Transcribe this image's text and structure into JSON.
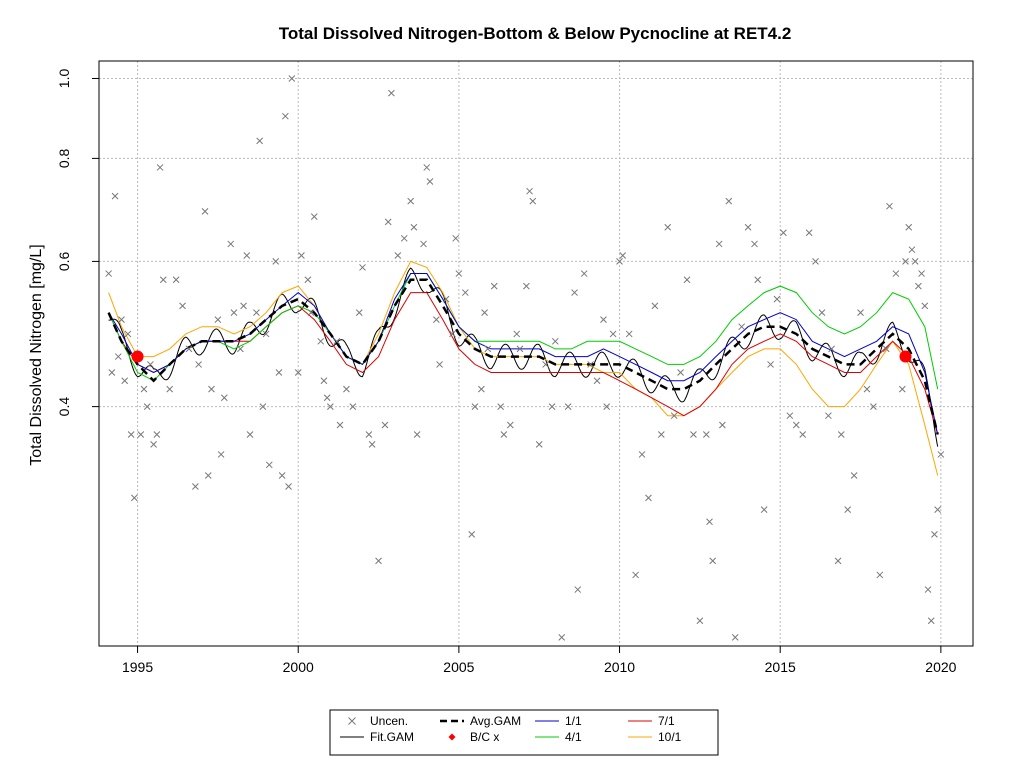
{
  "chart_data": {
    "type": "scatter",
    "title": "Total Dissolved Nitrogen-Bottom & Below Pycnocline at RET4.2",
    "xlabel": "",
    "ylabel": "Total Dissolved Nitrogen [mg/L]",
    "xlim": [
      1993.8,
      2021.0
    ],
    "ylim": [
      0.205,
      1.05
    ],
    "y_scale": "log",
    "grid": true,
    "legend_position": "bottom",
    "x_ticks": [
      1995,
      2000,
      2005,
      2010,
      2015,
      2020
    ],
    "x_tick_labels": [
      "1995",
      "2000",
      "2005",
      "2010",
      "2015",
      "2020"
    ],
    "y_ticks": [
      0.4,
      0.6,
      0.8,
      1.0
    ],
    "y_tick_labels": [
      "0.4",
      "0.6",
      "0.8",
      "1.0"
    ],
    "legend": [
      {
        "key": "uncen",
        "label": "Uncen."
      },
      {
        "key": "avg",
        "label": "Avg.GAM"
      },
      {
        "key": "d1",
        "label": "1/1"
      },
      {
        "key": "d7",
        "label": "7/1"
      },
      {
        "key": "fit",
        "label": "Fit.GAM"
      },
      {
        "key": "bc",
        "label": "B/C x"
      },
      {
        "key": "d4",
        "label": "4/1"
      },
      {
        "key": "d10",
        "label": "10/1"
      }
    ],
    "colors": {
      "uncen": "#777777",
      "fit": "#000000",
      "avg": "#000000",
      "bc": "#ff0000",
      "d1": "#0000cc",
      "d4": "#00cc00",
      "d7": "#dd0000",
      "d10": "#ffa500"
    },
    "observations": [
      [
        1994.1,
        0.58
      ],
      [
        1994.3,
        0.72
      ],
      [
        1994.4,
        0.46
      ],
      [
        1994.2,
        0.44
      ],
      [
        1994.5,
        0.51
      ],
      [
        1994.6,
        0.43
      ],
      [
        1994.7,
        0.49
      ],
      [
        1994.8,
        0.37
      ],
      [
        1994.9,
        0.31
      ],
      [
        1995.1,
        0.37
      ],
      [
        1995.2,
        0.42
      ],
      [
        1995.3,
        0.4
      ],
      [
        1995.4,
        0.45
      ],
      [
        1995.5,
        0.36
      ],
      [
        1995.6,
        0.37
      ],
      [
        1995.7,
        0.78
      ],
      [
        1995.8,
        0.57
      ],
      [
        1996.0,
        0.42
      ],
      [
        1996.2,
        0.57
      ],
      [
        1996.4,
        0.53
      ],
      [
        1996.6,
        0.47
      ],
      [
        1996.8,
        0.32
      ],
      [
        1996.9,
        0.45
      ],
      [
        1997.1,
        0.69
      ],
      [
        1997.2,
        0.33
      ],
      [
        1997.3,
        0.42
      ],
      [
        1997.5,
        0.51
      ],
      [
        1997.6,
        0.35
      ],
      [
        1997.7,
        0.41
      ],
      [
        1997.9,
        0.63
      ],
      [
        1998.0,
        0.52
      ],
      [
        1998.2,
        0.47
      ],
      [
        1998.3,
        0.53
      ],
      [
        1998.4,
        0.61
      ],
      [
        1998.5,
        0.37
      ],
      [
        1998.7,
        0.52
      ],
      [
        1998.8,
        0.84
      ],
      [
        1998.9,
        0.4
      ],
      [
        1999.0,
        0.49
      ],
      [
        1999.1,
        0.34
      ],
      [
        1999.3,
        0.6
      ],
      [
        1999.4,
        0.44
      ],
      [
        1999.5,
        0.33
      ],
      [
        1999.6,
        0.9
      ],
      [
        1999.7,
        0.32
      ],
      [
        1999.8,
        1.0
      ],
      [
        2000.0,
        0.44
      ],
      [
        2000.1,
        0.61
      ],
      [
        2000.3,
        0.57
      ],
      [
        2000.4,
        0.52
      ],
      [
        2000.5,
        0.68
      ],
      [
        2000.7,
        0.48
      ],
      [
        2000.8,
        0.43
      ],
      [
        2000.9,
        0.41
      ],
      [
        2001.0,
        0.4
      ],
      [
        2001.2,
        0.48
      ],
      [
        2001.3,
        0.38
      ],
      [
        2001.5,
        0.42
      ],
      [
        2001.7,
        0.4
      ],
      [
        2001.9,
        0.52
      ],
      [
        2002.0,
        0.59
      ],
      [
        2002.2,
        0.37
      ],
      [
        2002.3,
        0.36
      ],
      [
        2002.5,
        0.26
      ],
      [
        2002.7,
        0.38
      ],
      [
        2002.8,
        0.67
      ],
      [
        2002.9,
        0.96
      ],
      [
        2003.1,
        0.61
      ],
      [
        2003.3,
        0.64
      ],
      [
        2003.5,
        0.71
      ],
      [
        2003.6,
        0.66
      ],
      [
        2003.7,
        0.37
      ],
      [
        2003.9,
        0.63
      ],
      [
        2004.0,
        0.78
      ],
      [
        2004.1,
        0.75
      ],
      [
        2004.3,
        0.51
      ],
      [
        2004.4,
        0.45
      ],
      [
        2004.6,
        0.54
      ],
      [
        2004.8,
        0.49
      ],
      [
        2004.9,
        0.64
      ],
      [
        2005.0,
        0.58
      ],
      [
        2005.2,
        0.55
      ],
      [
        2005.4,
        0.28
      ],
      [
        2005.5,
        0.4
      ],
      [
        2005.7,
        0.42
      ],
      [
        2005.8,
        0.52
      ],
      [
        2005.9,
        0.47
      ],
      [
        2006.1,
        0.56
      ],
      [
        2006.3,
        0.4
      ],
      [
        2006.4,
        0.37
      ],
      [
        2006.6,
        0.38
      ],
      [
        2006.8,
        0.49
      ],
      [
        2006.9,
        0.47
      ],
      [
        2007.1,
        0.56
      ],
      [
        2007.2,
        0.73
      ],
      [
        2007.3,
        0.71
      ],
      [
        2007.5,
        0.36
      ],
      [
        2007.7,
        0.45
      ],
      [
        2007.9,
        0.4
      ],
      [
        2008.0,
        0.48
      ],
      [
        2008.2,
        0.21
      ],
      [
        2008.4,
        0.4
      ],
      [
        2008.6,
        0.55
      ],
      [
        2008.7,
        0.24
      ],
      [
        2008.9,
        0.58
      ],
      [
        2009.1,
        0.45
      ],
      [
        2009.3,
        0.43
      ],
      [
        2009.5,
        0.51
      ],
      [
        2009.6,
        0.4
      ],
      [
        2009.8,
        0.49
      ],
      [
        2010.0,
        0.6
      ],
      [
        2010.1,
        0.61
      ],
      [
        2010.3,
        0.49
      ],
      [
        2010.5,
        0.25
      ],
      [
        2010.7,
        0.35
      ],
      [
        2010.9,
        0.31
      ],
      [
        2011.1,
        0.53
      ],
      [
        2011.3,
        0.37
      ],
      [
        2011.5,
        0.66
      ],
      [
        2011.7,
        0.39
      ],
      [
        2011.9,
        0.44
      ],
      [
        2012.1,
        0.57
      ],
      [
        2012.3,
        0.37
      ],
      [
        2012.5,
        0.22
      ],
      [
        2012.7,
        0.37
      ],
      [
        2012.8,
        0.29
      ],
      [
        2012.9,
        0.26
      ],
      [
        2013.1,
        0.63
      ],
      [
        2013.2,
        0.38
      ],
      [
        2013.4,
        0.71
      ],
      [
        2013.6,
        0.21
      ],
      [
        2013.8,
        0.5
      ],
      [
        2014.0,
        0.66
      ],
      [
        2014.2,
        0.63
      ],
      [
        2014.3,
        0.57
      ],
      [
        2014.5,
        0.3
      ],
      [
        2014.7,
        0.45
      ],
      [
        2014.9,
        0.54
      ],
      [
        2015.1,
        0.65
      ],
      [
        2015.3,
        0.39
      ],
      [
        2015.5,
        0.38
      ],
      [
        2015.7,
        0.37
      ],
      [
        2015.9,
        0.65
      ],
      [
        2016.1,
        0.6
      ],
      [
        2016.3,
        0.52
      ],
      [
        2016.5,
        0.39
      ],
      [
        2016.6,
        0.47
      ],
      [
        2016.8,
        0.26
      ],
      [
        2016.9,
        0.37
      ],
      [
        2017.1,
        0.3
      ],
      [
        2017.3,
        0.33
      ],
      [
        2017.5,
        0.52
      ],
      [
        2017.7,
        0.42
      ],
      [
        2017.9,
        0.4
      ],
      [
        2018.1,
        0.25
      ],
      [
        2018.3,
        0.47
      ],
      [
        2018.4,
        0.7
      ],
      [
        2018.6,
        0.58
      ],
      [
        2018.8,
        0.42
      ],
      [
        2018.9,
        0.6
      ],
      [
        2019.0,
        0.66
      ],
      [
        2019.1,
        0.62
      ],
      [
        2019.2,
        0.6
      ],
      [
        2019.3,
        0.56
      ],
      [
        2019.4,
        0.58
      ],
      [
        2019.5,
        0.53
      ],
      [
        2019.6,
        0.24
      ],
      [
        2019.7,
        0.22
      ],
      [
        2019.8,
        0.28
      ],
      [
        2019.9,
        0.3
      ],
      [
        2020.0,
        0.35
      ]
    ],
    "bc_points": [
      [
        1995.0,
        0.46
      ],
      [
        2018.9,
        0.46
      ]
    ],
    "series": [
      {
        "key": "avg",
        "x": [
          1994.1,
          1994.5,
          1995.0,
          1995.5,
          1996.0,
          1996.5,
          1997.0,
          1997.5,
          1998.0,
          1998.5,
          1999.0,
          1999.5,
          2000.0,
          2000.5,
          2001.0,
          2001.5,
          2002.0,
          2002.5,
          2003.0,
          2003.5,
          2004.0,
          2004.5,
          2005.0,
          2005.5,
          2006.0,
          2006.5,
          2007.0,
          2007.5,
          2008.0,
          2008.5,
          2009.0,
          2009.5,
          2010.0,
          2010.5,
          2011.0,
          2011.5,
          2012.0,
          2012.5,
          2013.0,
          2013.5,
          2014.0,
          2014.5,
          2015.0,
          2015.5,
          2016.0,
          2016.5,
          2017.0,
          2017.5,
          2018.0,
          2018.5,
          2019.0,
          2019.5,
          2019.9
        ],
        "values": [
          0.52,
          0.48,
          0.45,
          0.43,
          0.45,
          0.47,
          0.48,
          0.48,
          0.48,
          0.49,
          0.51,
          0.53,
          0.54,
          0.52,
          0.49,
          0.46,
          0.45,
          0.48,
          0.53,
          0.57,
          0.57,
          0.53,
          0.49,
          0.47,
          0.46,
          0.46,
          0.46,
          0.46,
          0.45,
          0.45,
          0.45,
          0.45,
          0.45,
          0.44,
          0.43,
          0.42,
          0.42,
          0.43,
          0.45,
          0.47,
          0.49,
          0.5,
          0.5,
          0.49,
          0.47,
          0.46,
          0.45,
          0.45,
          0.47,
          0.49,
          0.47,
          0.43,
          0.37
        ]
      },
      {
        "key": "d1",
        "x": [
          1994.1,
          1994.5,
          1995.0,
          1995.5,
          1996.0,
          1996.5,
          1997.0,
          1997.5,
          1998.0,
          1998.5,
          1999.0,
          1999.5,
          2000.0,
          2000.5,
          2001.0,
          2001.5,
          2002.0,
          2002.5,
          2003.0,
          2003.5,
          2004.0,
          2004.5,
          2005.0,
          2005.5,
          2006.0,
          2006.5,
          2007.0,
          2007.5,
          2008.0,
          2008.5,
          2009.0,
          2009.5,
          2010.0,
          2010.5,
          2011.0,
          2011.5,
          2012.0,
          2012.5,
          2013.0,
          2013.5,
          2014.0,
          2014.5,
          2015.0,
          2015.5,
          2016.0,
          2016.5,
          2017.0,
          2017.5,
          2018.0,
          2018.5,
          2019.0,
          2019.5,
          2019.9
        ],
        "values": [
          0.52,
          0.49,
          0.45,
          0.44,
          0.45,
          0.47,
          0.48,
          0.48,
          0.48,
          0.49,
          0.51,
          0.53,
          0.55,
          0.53,
          0.49,
          0.46,
          0.45,
          0.48,
          0.54,
          0.58,
          0.58,
          0.54,
          0.5,
          0.48,
          0.47,
          0.47,
          0.47,
          0.47,
          0.46,
          0.46,
          0.46,
          0.47,
          0.46,
          0.45,
          0.44,
          0.43,
          0.43,
          0.44,
          0.46,
          0.48,
          0.5,
          0.51,
          0.52,
          0.51,
          0.48,
          0.47,
          0.46,
          0.47,
          0.48,
          0.5,
          0.49,
          0.44,
          0.37
        ]
      },
      {
        "key": "d4",
        "x": [
          1994.1,
          1994.5,
          1995.0,
          1995.5,
          1996.0,
          1996.5,
          1997.0,
          1997.5,
          1998.0,
          1998.5,
          1999.0,
          1999.5,
          2000.0,
          2000.5,
          2001.0,
          2001.5,
          2002.0,
          2002.5,
          2003.0,
          2003.5,
          2004.0,
          2004.5,
          2005.0,
          2005.5,
          2006.0,
          2006.5,
          2007.0,
          2007.5,
          2008.0,
          2008.5,
          2009.0,
          2009.5,
          2010.0,
          2010.5,
          2011.0,
          2011.5,
          2012.0,
          2012.5,
          2013.0,
          2013.5,
          2014.0,
          2014.5,
          2015.0,
          2015.5,
          2016.0,
          2016.5,
          2017.0,
          2017.5,
          2018.0,
          2018.5,
          2019.0,
          2019.5,
          2019.9
        ],
        "values": [
          0.52,
          0.48,
          0.44,
          0.43,
          0.45,
          0.47,
          0.48,
          0.48,
          0.47,
          0.48,
          0.5,
          0.52,
          0.53,
          0.52,
          0.49,
          0.46,
          0.45,
          0.48,
          0.53,
          0.58,
          0.58,
          0.54,
          0.5,
          0.48,
          0.48,
          0.48,
          0.48,
          0.48,
          0.47,
          0.47,
          0.48,
          0.48,
          0.48,
          0.47,
          0.46,
          0.45,
          0.45,
          0.46,
          0.48,
          0.51,
          0.53,
          0.55,
          0.56,
          0.55,
          0.52,
          0.5,
          0.49,
          0.5,
          0.52,
          0.55,
          0.54,
          0.5,
          0.42
        ]
      },
      {
        "key": "d7",
        "x": [
          1994.1,
          1994.5,
          1995.0,
          1995.5,
          1996.0,
          1996.5,
          1997.0,
          1997.5,
          1998.0,
          1998.5,
          1999.0,
          1999.5,
          2000.0,
          2000.5,
          2001.0,
          2001.5,
          2002.0,
          2002.5,
          2003.0,
          2003.5,
          2004.0,
          2004.5,
          2005.0,
          2005.5,
          2006.0,
          2006.5,
          2007.0,
          2007.5,
          2008.0,
          2008.5,
          2009.0,
          2009.5,
          2010.0,
          2010.5,
          2011.0,
          2011.5,
          2012.0,
          2012.5,
          2013.0,
          2013.5,
          2014.0,
          2014.5,
          2015.0,
          2015.5,
          2016.0,
          2016.5,
          2017.0,
          2017.5,
          2018.0,
          2018.5,
          2019.0,
          2019.5,
          2019.9
        ],
        "values": [
          0.52,
          0.48,
          0.45,
          0.44,
          0.45,
          0.47,
          0.48,
          0.48,
          0.48,
          0.48,
          0.5,
          0.52,
          0.53,
          0.51,
          0.48,
          0.45,
          0.44,
          0.46,
          0.51,
          0.55,
          0.55,
          0.51,
          0.47,
          0.45,
          0.44,
          0.44,
          0.44,
          0.44,
          0.44,
          0.44,
          0.44,
          0.44,
          0.43,
          0.42,
          0.41,
          0.4,
          0.39,
          0.4,
          0.42,
          0.45,
          0.47,
          0.48,
          0.49,
          0.48,
          0.46,
          0.45,
          0.44,
          0.44,
          0.46,
          0.48,
          0.46,
          0.42,
          0.37
        ]
      },
      {
        "key": "d10",
        "x": [
          1994.1,
          1994.5,
          1995.0,
          1995.5,
          1996.0,
          1996.5,
          1997.0,
          1997.5,
          1998.0,
          1998.5,
          1999.0,
          1999.5,
          2000.0,
          2000.5,
          2001.0,
          2001.5,
          2002.0,
          2002.5,
          2003.0,
          2003.5,
          2004.0,
          2004.5,
          2005.0,
          2005.5,
          2006.0,
          2006.5,
          2007.0,
          2007.5,
          2008.0,
          2008.5,
          2009.0,
          2009.5,
          2010.0,
          2010.5,
          2011.0,
          2011.5,
          2012.0,
          2012.5,
          2013.0,
          2013.5,
          2014.0,
          2014.5,
          2015.0,
          2015.5,
          2016.0,
          2016.5,
          2017.0,
          2017.5,
          2018.0,
          2018.5,
          2019.0,
          2019.5,
          2019.9
        ],
        "values": [
          0.55,
          0.5,
          0.46,
          0.46,
          0.47,
          0.49,
          0.5,
          0.5,
          0.49,
          0.5,
          0.52,
          0.55,
          0.56,
          0.53,
          0.49,
          0.46,
          0.45,
          0.49,
          0.55,
          0.6,
          0.59,
          0.55,
          0.5,
          0.47,
          0.46,
          0.46,
          0.46,
          0.46,
          0.45,
          0.45,
          0.45,
          0.44,
          0.44,
          0.42,
          0.41,
          0.39,
          0.39,
          0.4,
          0.42,
          0.44,
          0.46,
          0.47,
          0.47,
          0.45,
          0.42,
          0.4,
          0.4,
          0.42,
          0.45,
          0.48,
          0.45,
          0.38,
          0.33
        ]
      }
    ],
    "fit": {
      "key": "fit",
      "seasonal_amplitude": 0.035
    }
  }
}
